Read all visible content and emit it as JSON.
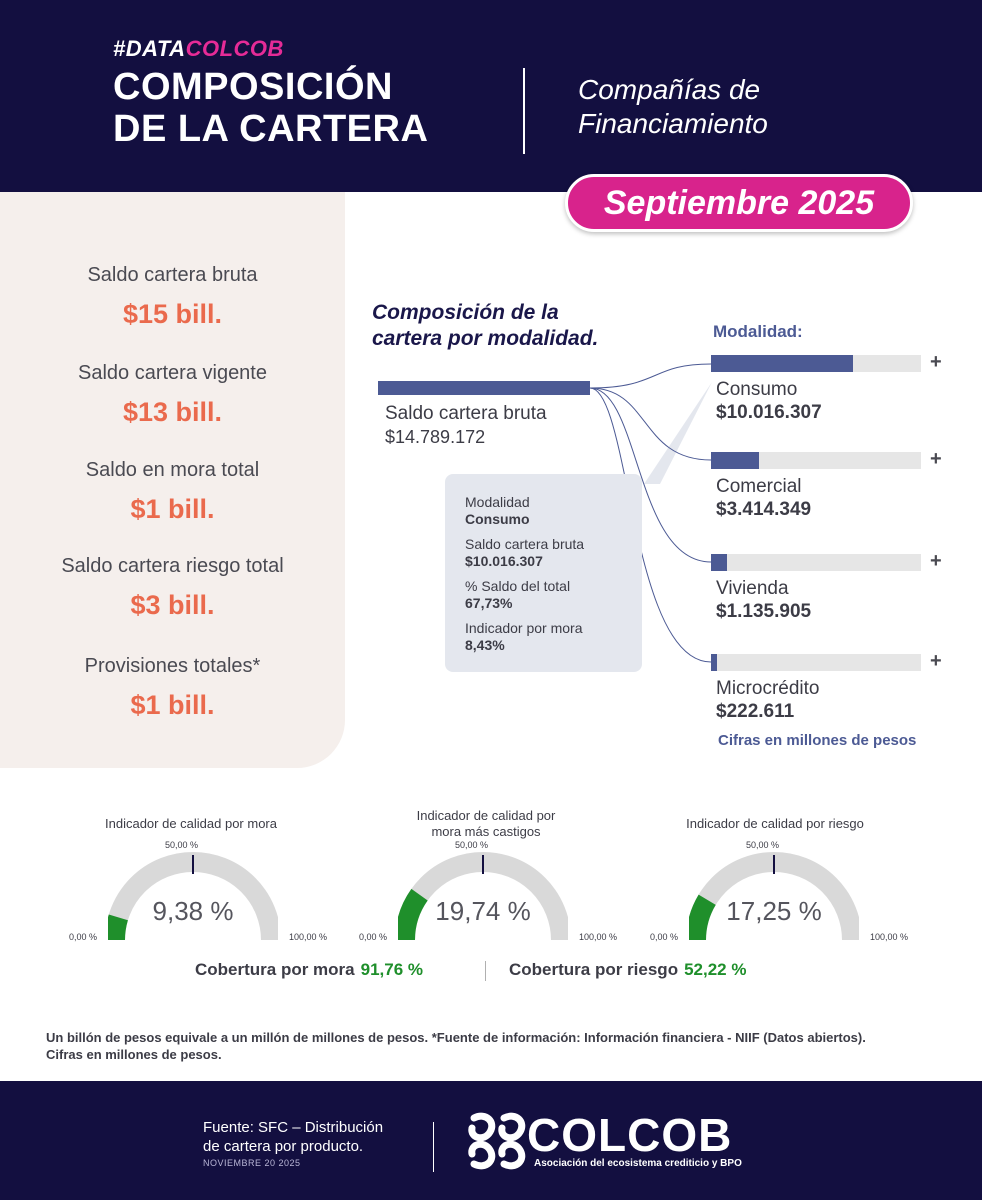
{
  "header": {
    "hashtag_prefix": "#DATA",
    "hashtag_highlight": "COLCOB",
    "title_line1": "COMPOSICIÓN",
    "title_line2": "DE LA CARTERA",
    "subtitle_line1": "Compañías de",
    "subtitle_line2": "Financiamiento",
    "date": "Septiembre 2025"
  },
  "kpis": [
    {
      "label": "Saldo cartera bruta",
      "value": "$15 bill."
    },
    {
      "label": "Saldo cartera vigente",
      "value": "$13 bill."
    },
    {
      "label": "Saldo en mora total",
      "value": "$1 bill."
    },
    {
      "label": "Saldo cartera riesgo total",
      "value": "$3 bill."
    },
    {
      "label": "Provisiones totales*",
      "value": "$1 bill."
    }
  ],
  "composition": {
    "title_line1": "Composición de la",
    "title_line2": "cartera por modalidad.",
    "total_label": "Saldo cartera bruta",
    "total_value": "$14.789.172",
    "modalidad_header": "Modalidad:",
    "plus_symbol": "+",
    "note": "Cifras en millones de pesos"
  },
  "tooltip": {
    "l1": "Modalidad",
    "v1": "Consumo",
    "l2": "Saldo cartera bruta",
    "v2": "$10.016.307",
    "l3": "% Saldo del total",
    "v3": "67,73%",
    "l4": "Indicador por mora",
    "v4": "8,43%"
  },
  "chart_data": [
    {
      "type": "bar",
      "title": "Composición de la cartera por modalidad.",
      "categories": [
        "Consumo",
        "Comercial",
        "Vivienda",
        "Microcrédito"
      ],
      "values": [
        10016307,
        3414349,
        1135905,
        222611
      ],
      "value_labels": [
        "$10.016.307",
        "$3.414.349",
        "$1.135.905",
        "$222.611"
      ],
      "total": 14789172,
      "unit": "millones de pesos"
    },
    {
      "type": "gauge",
      "title": "Indicador de calidad por mora",
      "value": 9.38,
      "value_label": "9,38 %",
      "range": [
        0,
        100
      ],
      "tick_labels": [
        "0,00 %",
        "50,00 %",
        "100,00 %"
      ],
      "color": "#1f8f2b"
    },
    {
      "type": "gauge",
      "title_line1": "Indicador de calidad por",
      "title_line2": "mora más castigos",
      "value": 19.74,
      "value_label": "19,74 %",
      "range": [
        0,
        100
      ],
      "tick_labels": [
        "0,00 %",
        "50,00 %",
        "100,00 %"
      ],
      "color": "#1f8f2b"
    },
    {
      "type": "gauge",
      "title": "Indicador de calidad por riesgo",
      "value": 17.25,
      "value_label": "17,25 %",
      "range": [
        0,
        100
      ],
      "tick_labels": [
        "0,00 %",
        "50,00 %",
        "100,00 %"
      ],
      "color": "#1f8f2b"
    }
  ],
  "coverage": {
    "mora_label": "Cobertura por mora",
    "mora_value": "91,76 %",
    "riesgo_label": "Cobertura por riesgo",
    "riesgo_value": "52,22 %"
  },
  "footnote_line1": "Un billón de pesos equivale a un millón de millones de pesos. *Fuente de información: Información financiera - NIIF (Datos abiertos).",
  "footnote_line2": "Cifras en millones de pesos.",
  "footer": {
    "source_line1": "Fuente: SFC – Distribución",
    "source_line2": "de cartera por producto.",
    "date": "NOVIEMBRE 20 2025",
    "logo_text": "COLCOB",
    "logo_sub": "Asociación del ecosistema crediticio y BPO"
  },
  "colors": {
    "navy": "#130f40",
    "magenta": "#d8238c",
    "bar": "#4c5a94",
    "kpi_value": "#ea6a4d",
    "green": "#1f8f2b"
  }
}
